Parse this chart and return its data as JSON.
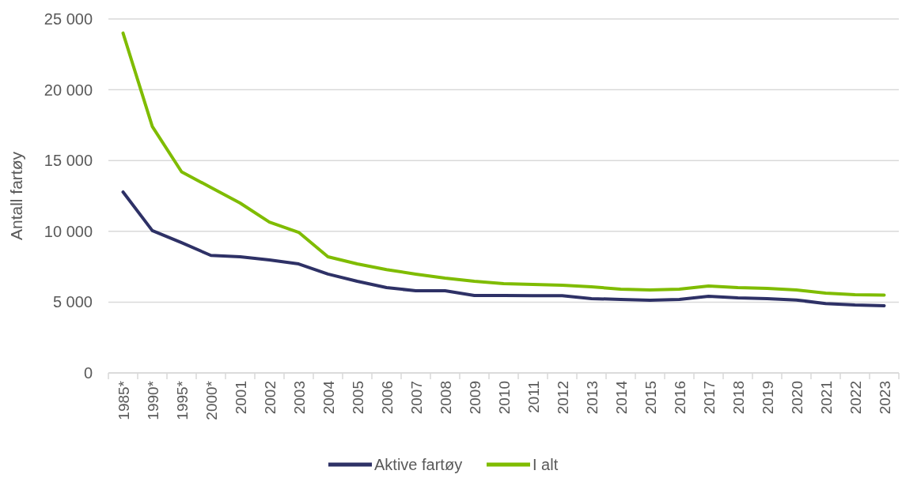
{
  "chart_data": {
    "type": "line",
    "ylabel": "Antall fartøy",
    "categories": [
      "1985*",
      "1990*",
      "1995*",
      "2000*",
      "2001",
      "2002",
      "2003",
      "2004",
      "2005",
      "2006",
      "2007",
      "2008",
      "2009",
      "2010",
      "2011",
      "2012",
      "2013",
      "2014",
      "2015",
      "2016",
      "2017",
      "2018",
      "2019",
      "2020",
      "2021",
      "2022",
      "2023"
    ],
    "series": [
      {
        "name": "Aktive fartøy",
        "color": "#2e3166",
        "values": [
          12780,
          10050,
          9200,
          8300,
          8200,
          7980,
          7700,
          6980,
          6470,
          6030,
          5800,
          5800,
          5470,
          5470,
          5450,
          5450,
          5250,
          5190,
          5130,
          5190,
          5410,
          5300,
          5250,
          5150,
          4900,
          4800,
          4750
        ]
      },
      {
        "name": "I alt",
        "color": "#7fbc00",
        "values": [
          24000,
          17400,
          14200,
          13100,
          12000,
          10650,
          9930,
          8200,
          7700,
          7300,
          6980,
          6700,
          6470,
          6300,
          6250,
          6200,
          6080,
          5920,
          5860,
          5920,
          6140,
          6030,
          5970,
          5860,
          5640,
          5520,
          5500
        ]
      }
    ],
    "ylim": [
      0,
      25000
    ],
    "yticks": [
      {
        "value": 0,
        "label": "0"
      },
      {
        "value": 5000,
        "label": "5 000"
      },
      {
        "value": 10000,
        "label": "10 000"
      },
      {
        "value": 15000,
        "label": "15 000"
      },
      {
        "value": 20000,
        "label": "20 000"
      },
      {
        "value": 25000,
        "label": "25 000"
      }
    ],
    "grid": "y",
    "legend": "bottom",
    "marker": "none",
    "line_style": "solid"
  }
}
